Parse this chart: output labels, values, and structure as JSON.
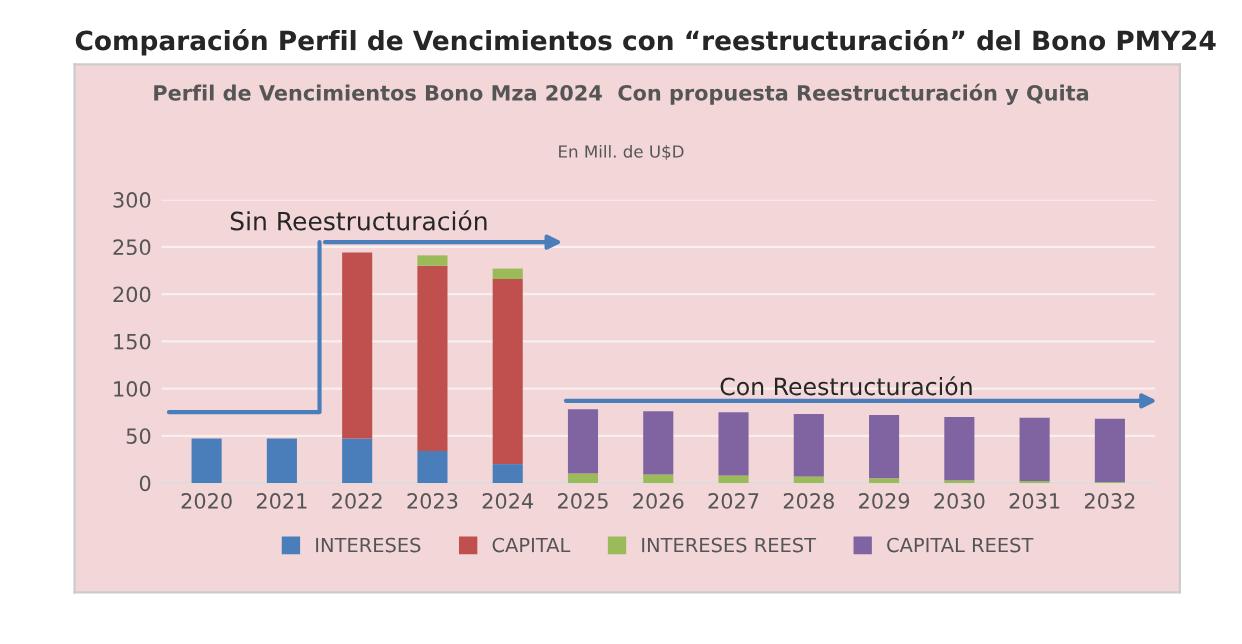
{
  "chart_data": {
    "type": "bar",
    "stacked": true,
    "title": "Comparación Perfil de Vencimientos con “reestructuración” del Bono PMY24",
    "subtitle": "Perfil de Vencimientos Bono Mza 2024  Con propuesta Reestructuración y Quita",
    "annotations": [
      "En Mill. de U$D",
      "Sin Reestructuración",
      "Con Reestructuración"
    ],
    "categories": [
      "2020",
      "2021",
      "2022",
      "2023",
      "2024",
      "2025",
      "2026",
      "2027",
      "2028",
      "2029",
      "2030",
      "2031",
      "2032"
    ],
    "series": [
      {
        "name": "INTERESES",
        "color": "#4a7ebb",
        "values": [
          47,
          47,
          47,
          34,
          20,
          0,
          0,
          0,
          0,
          0,
          0,
          0,
          0
        ]
      },
      {
        "name": "CAPITAL",
        "color": "#c0504d",
        "values": [
          0,
          0,
          197,
          196,
          196,
          0,
          0,
          0,
          0,
          0,
          0,
          0,
          0
        ]
      },
      {
        "name": "INTERESES REEST",
        "color": "#9bbb59",
        "values": [
          0,
          0,
          0,
          11,
          11,
          10,
          9,
          8,
          7,
          5,
          3,
          2,
          1
        ]
      },
      {
        "name": "CAPITAL REEST",
        "color": "#8064a2",
        "values": [
          0,
          0,
          0,
          0,
          0,
          68,
          67,
          67,
          66,
          67,
          67,
          67,
          67
        ]
      }
    ],
    "ylim": [
      0,
      300
    ],
    "yticks": [
      0,
      50,
      100,
      150,
      200,
      250,
      300
    ],
    "grid": "y",
    "legend": "bottom"
  }
}
